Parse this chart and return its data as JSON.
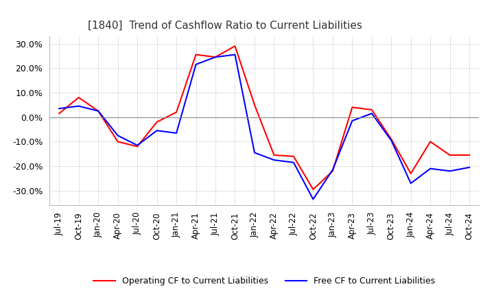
{
  "title": "[1840]  Trend of Cashflow Ratio to Current Liabilities",
  "legend_operating": "Operating CF to Current Liabilities",
  "legend_free": "Free CF to Current Liabilities",
  "operating_color": "#ff0000",
  "free_color": "#0000ff",
  "background_color": "#ffffff",
  "grid_color": "#aaaaaa",
  "zero_line_color": "#888888",
  "ylim": [
    -0.36,
    0.33
  ],
  "yticks": [
    -0.3,
    -0.2,
    -0.1,
    0.0,
    0.1,
    0.2,
    0.3
  ],
  "x_labels": [
    "Jul-19",
    "Oct-19",
    "Jan-20",
    "Apr-20",
    "Jul-20",
    "Oct-20",
    "Jan-21",
    "Apr-21",
    "Jul-21",
    "Oct-21",
    "Jan-22",
    "Apr-22",
    "Jul-22",
    "Oct-22",
    "Jan-23",
    "Apr-23",
    "Jul-23",
    "Oct-23",
    "Jan-24",
    "Apr-24",
    "Jul-24",
    "Oct-24"
  ],
  "operating_cf": [
    0.015,
    0.08,
    0.025,
    -0.1,
    -0.12,
    -0.02,
    0.02,
    0.255,
    0.245,
    0.29,
    0.05,
    -0.155,
    -0.16,
    -0.295,
    -0.22,
    0.04,
    0.03,
    -0.09,
    -0.23,
    -0.1,
    -0.155,
    -0.155
  ],
  "free_cf": [
    0.035,
    0.045,
    0.025,
    -0.075,
    -0.115,
    -0.055,
    -0.065,
    0.215,
    0.245,
    0.255,
    -0.145,
    -0.175,
    -0.185,
    -0.335,
    -0.215,
    -0.015,
    0.015,
    -0.095,
    -0.27,
    -0.21,
    -0.22,
    -0.205
  ]
}
